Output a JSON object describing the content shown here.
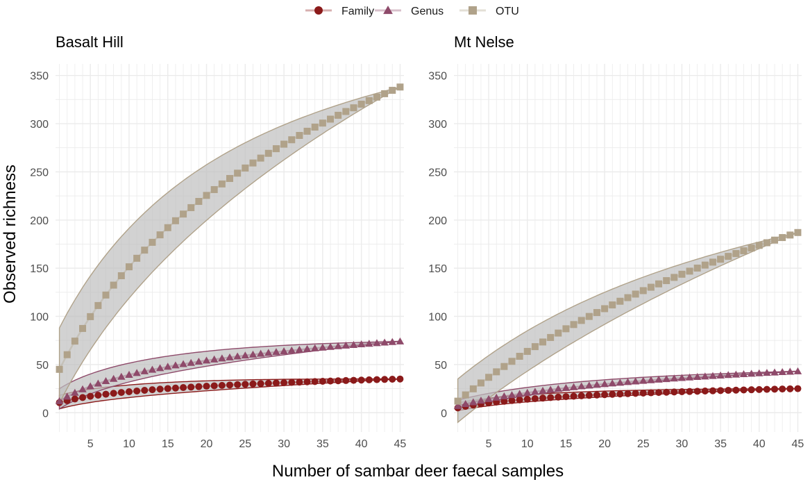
{
  "chart_data": {
    "type": "line",
    "xlabel": "Number of sambar deer faecal samples",
    "ylabel": "Observed richness",
    "xlim": [
      0.5,
      45.5
    ],
    "ylim": [
      -20,
      362
    ],
    "xticks": [
      5,
      10,
      15,
      20,
      25,
      30,
      35,
      40,
      45
    ],
    "yticks": [
      0,
      50,
      100,
      150,
      200,
      250,
      300,
      350
    ],
    "grid": true,
    "legend_position": "top",
    "legend": [
      {
        "name": "Family",
        "color": "#8b1a1a",
        "marker": "circle"
      },
      {
        "name": "Genus",
        "color": "#8e4a6a",
        "marker": "triangle"
      },
      {
        "name": "OTU",
        "color": "#b0a28a",
        "marker": "square"
      }
    ],
    "ribbon_fill": "#bfbfbf",
    "panels": [
      {
        "title": "Basalt Hill",
        "series": [
          {
            "name": "Family",
            "final": 35,
            "start": 10.5,
            "k": 4.5,
            "lower1": 4,
            "upper1": 18
          },
          {
            "name": "Genus",
            "final": 74,
            "start": 12,
            "k": 5.5,
            "lower1": 4,
            "upper1": 25
          },
          {
            "name": "OTU",
            "final": 338,
            "start": 45,
            "k": 12,
            "lower1": 10,
            "upper1": 88
          }
        ]
      },
      {
        "title": "Mt Nelse",
        "series": [
          {
            "name": "Family",
            "final": 25,
            "start": 5,
            "k": 5,
            "lower1": 2,
            "upper1": 10
          },
          {
            "name": "Genus",
            "final": 43,
            "start": 7,
            "k": 10,
            "lower1": 4,
            "upper1": 13
          },
          {
            "name": "OTU",
            "final": 187,
            "start": 12,
            "k": 28,
            "lower1": -10,
            "upper1": 35
          }
        ]
      }
    ]
  }
}
